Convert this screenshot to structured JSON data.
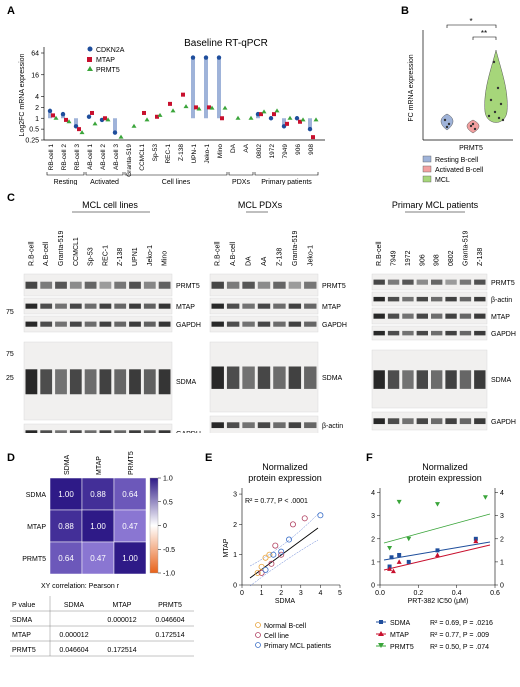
{
  "panels": {
    "a": "A",
    "b": "B",
    "c": "C",
    "d": "D",
    "e": "E",
    "f": "F"
  },
  "panelA": {
    "title": "Baseline RT-qPCR",
    "ylabel": "Log2FC mRNA expression",
    "yticks": [
      "64",
      "16",
      "4",
      "2",
      "1",
      "0.5",
      "0.25"
    ],
    "legend": [
      "CDKN2A",
      "MTAP",
      "PRMT5"
    ],
    "groups": [
      "Resting",
      "Activated",
      "Cell lines",
      "PDXs",
      "Primary patients"
    ]
  },
  "panelB": {
    "ylabel": "FC mRNA expression",
    "xlabel": "PRMT5",
    "sig1": "*",
    "sig2": "**",
    "legend": [
      "Resting B-cell",
      "Activated B-cell",
      "MCL"
    ]
  },
  "panelC": {
    "group1": {
      "title": "MCL cell lines",
      "lanes": [
        "R.B-cell",
        "A.B-cell",
        "Granta-519",
        "CCMCL1",
        "Sp-53",
        "REC-1",
        "Z-138",
        "UPN1",
        "Jeko-1",
        "Mino"
      ],
      "labels1": [
        "PRMT5",
        "MTAP",
        "GAPDH"
      ],
      "labels2": [
        "SDMA",
        "GAPDH"
      ],
      "markers": [
        "75",
        "75",
        "25"
      ]
    },
    "group2": {
      "title": "MCL PDXs",
      "lanes": [
        "R.B-cell",
        "A.B-cell",
        "DA",
        "AA",
        "Z-138",
        "Granta-519",
        "Jeko-1"
      ],
      "labels1": [
        "PRMT5",
        "MTAP",
        "GAPDH"
      ],
      "labels2": [
        "SDMA",
        "β-actin"
      ]
    },
    "group3": {
      "title": "Primary MCL patients",
      "lanes": [
        "R.B-cell",
        "7949",
        "1972",
        "906",
        "908",
        "0802",
        "Granta-519",
        "Z-138"
      ],
      "labels1": [
        "PRMT5",
        "β-actin",
        "MTAP",
        "GAPDH"
      ],
      "labels2": [
        "SDMA",
        "GAPDH"
      ]
    }
  },
  "panelD": {
    "labels": [
      "SDMA",
      "MTAP",
      "PRMT5"
    ],
    "matrix": [
      [
        "1.00",
        "0.88",
        "0.64"
      ],
      [
        "0.88",
        "1.00",
        "0.47"
      ],
      [
        "0.64",
        "0.47",
        "1.00"
      ]
    ],
    "colorbar_ticks": [
      "1.0",
      "0.5",
      "0",
      "-0.5",
      "-1.0"
    ],
    "caption": "XY correlation: Pearson r",
    "table": {
      "header": [
        "P value",
        "SDMA",
        "MTAP",
        "PRMT5"
      ],
      "rows": [
        [
          "SDMA",
          "",
          "0.000012",
          "0.046604"
        ],
        [
          "MTAP",
          "0.000012",
          "",
          "0.172514"
        ],
        [
          "PRMT5",
          "0.046604",
          "0.172514",
          ""
        ]
      ]
    }
  },
  "panelE": {
    "title1": "Normalized",
    "title2": "protein expression",
    "stat": "R² = 0.77, P < .0001",
    "xlabel": "SDMA",
    "ylabel": "MTAP",
    "xticks": [
      "0",
      "1",
      "2",
      "3",
      "4",
      "5"
    ],
    "yticks": [
      "0",
      "1",
      "2",
      "3"
    ],
    "legend": [
      "Normal B-cell",
      "Cell line",
      "Primary MCL patients"
    ]
  },
  "panelF": {
    "title1": "Normalized",
    "title2": "protein expression",
    "xlabel": "PRT-382 IC50 (μM)",
    "xticks": [
      "0.0",
      "0.2",
      "0.4",
      "0.6"
    ],
    "yticks": [
      "0",
      "1",
      "2",
      "3",
      "4"
    ],
    "legend": [
      {
        "name": "SDMA",
        "stat": "R² = 0.69, P = .0216"
      },
      {
        "name": "MTAP",
        "stat": "R² = 0.77, P = .009"
      },
      {
        "name": "PRMT5",
        "stat": "R² = 0.50, P = .074"
      }
    ]
  },
  "colors": {
    "cdkn2a": "#1f4e9c",
    "mtap": "#c8102e",
    "prmt5": "#3aa53a",
    "bar": "#9fb3d9",
    "resting": "#9fb3d9",
    "activated": "#f2a0a0",
    "mcl": "#a6d67a",
    "heat_high": "#2e1a87",
    "heat_mid": "#6a4fbf"
  },
  "chart_data": [
    {
      "type": "bar",
      "title": "Baseline RT-qPCR",
      "ylabel": "Log2FC mRNA expression",
      "categories": [
        "RB-cell 1",
        "RB-cell 2",
        "RB-cell 3",
        "AB-cell 1",
        "AB-cell 2",
        "AB-cell 3",
        "Granta-519",
        "CCMCL1",
        "Sp-53",
        "REC-1",
        "Z-138",
        "UPN-1",
        "Jeko-1",
        "Mino",
        "DA",
        "AA",
        "0802",
        "1972",
        "7949",
        "906",
        "908"
      ],
      "series": [
        {
          "name": "CDKN2A",
          "values": [
            1.6,
            1.3,
            0.6,
            1.1,
            0.9,
            0.4,
            null,
            null,
            null,
            null,
            null,
            48,
            48,
            48,
            null,
            null,
            1.3,
            1.0,
            0.6,
            1.0,
            0.5
          ]
        },
        {
          "name": "MTAP",
          "values": [
            1.2,
            0.9,
            0.5,
            1.4,
            1.0,
            null,
            null,
            1.4,
            1.1,
            2.5,
            4.5,
            2.0,
            2.0,
            1.0,
            null,
            null,
            1.3,
            1.3,
            0.7,
            0.8,
            0.3
          ]
        },
        {
          "name": "PRMT5",
          "values": [
            1.0,
            0.8,
            0.4,
            0.7,
            0.9,
            0.3,
            0.6,
            0.9,
            1.2,
            1.6,
            2.1,
            1.8,
            1.9,
            1.9,
            1.0,
            1.0,
            1.5,
            1.6,
            1.0,
            0.9,
            0.9
          ]
        }
      ]
    },
    {
      "type": "scatter",
      "xlabel": "SDMA",
      "ylabel": "MTAP",
      "series": [
        {
          "name": "Normal B-cell",
          "x": [
            0.8,
            1.0,
            1.2,
            1.4
          ],
          "y": [
            0.4,
            0.6,
            0.9,
            1.0
          ]
        },
        {
          "name": "Cell line",
          "x": [
            1.0,
            1.5,
            1.7,
            2.0,
            2.6,
            3.2
          ],
          "y": [
            0.4,
            0.7,
            1.3,
            1.0,
            2.0,
            2.2
          ]
        },
        {
          "name": "Primary MCL patients",
          "x": [
            1.2,
            1.6,
            2.0,
            2.4,
            4.0
          ],
          "y": [
            0.5,
            1.0,
            1.1,
            1.5,
            2.3
          ]
        }
      ]
    },
    {
      "type": "scatter",
      "xlabel": "PRT-382 IC50 (μM)",
      "series": [
        {
          "name": "SDMA",
          "x": [
            0.05,
            0.06,
            0.1,
            0.15,
            0.3,
            0.5
          ],
          "y": [
            0.8,
            1.2,
            1.3,
            1.0,
            1.5,
            2.0
          ]
        },
        {
          "name": "MTAP",
          "x": [
            0.05,
            0.07,
            0.1,
            0.3,
            0.5
          ],
          "y": [
            0.7,
            0.6,
            1.0,
            1.3,
            1.9
          ]
        },
        {
          "name": "PRMT5",
          "x": [
            0.05,
            0.1,
            0.15,
            0.3,
            0.55
          ],
          "y": [
            1.6,
            3.6,
            2.0,
            3.5,
            3.8
          ]
        }
      ]
    }
  ]
}
